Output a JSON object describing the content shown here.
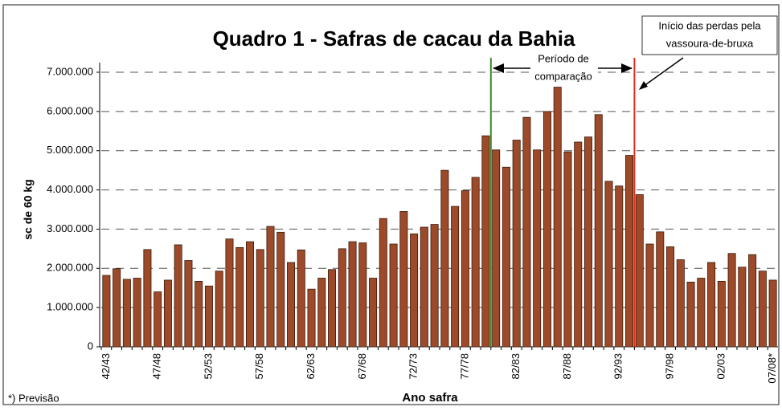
{
  "chart_data": {
    "type": "bar",
    "title": "Quadro 1 - Safras de cacau da Bahia",
    "y_label": "sc de 60 kg",
    "x_label": "Ano safra",
    "note": "*) Previsão",
    "annotations": {
      "period": [
        "Período de",
        "comparação"
      ],
      "losses": [
        "Início das perdas pela",
        "vassoura-de-bruxa"
      ]
    },
    "vlines": [
      {
        "x": 37.5,
        "color": "#3a8a2a"
      },
      {
        "x": 51.5,
        "color": "#e03020"
      }
    ],
    "categories": [
      "42/43",
      null,
      null,
      null,
      null,
      "47/48",
      null,
      null,
      null,
      null,
      "52/53",
      null,
      null,
      null,
      null,
      "57/58",
      null,
      null,
      null,
      null,
      "62/63",
      null,
      null,
      null,
      null,
      "67/68",
      null,
      null,
      null,
      null,
      "72/73",
      null,
      null,
      null,
      null,
      "77/78",
      null,
      null,
      null,
      null,
      "82/83",
      null,
      null,
      null,
      null,
      "87/88",
      null,
      null,
      null,
      null,
      "92/93",
      null,
      null,
      null,
      null,
      "97/98",
      null,
      null,
      null,
      null,
      "02/03",
      null,
      null,
      null,
      null,
      "07/08*"
    ],
    "values": [
      1820000,
      1990000,
      1720000,
      1750000,
      2480000,
      1400000,
      1700000,
      2600000,
      2200000,
      1670000,
      1550000,
      1930000,
      2750000,
      2530000,
      2680000,
      2480000,
      3070000,
      2920000,
      2150000,
      2470000,
      1470000,
      1750000,
      1970000,
      2500000,
      2680000,
      2650000,
      1750000,
      3270000,
      2620000,
      3450000,
      2880000,
      3050000,
      3120000,
      4500000,
      3580000,
      3980000,
      4320000,
      5380000,
      5020000,
      4580000,
      5270000,
      5850000,
      5020000,
      6000000,
      6620000,
      4970000,
      5220000,
      5350000,
      5920000,
      4220000,
      4100000,
      4880000,
      3880000,
      2620000,
      2930000,
      2550000,
      2220000,
      1650000,
      1750000,
      2150000,
      1670000,
      2380000,
      2030000,
      2350000,
      1930000,
      1700000
    ],
    "color": "#9c4a2a",
    "ylim": [
      0,
      7000000
    ],
    "yticks": [
      0,
      {
        "value": 1000000,
        "label": "1.000.000"
      },
      {
        "value": 2000000,
        "label": "2.000.000"
      },
      {
        "value": 3000000,
        "label": "3.000.000"
      },
      {
        "value": 4000000,
        "label": "4.000.000"
      },
      {
        "value": 5000000,
        "label": "5.000.000"
      },
      {
        "value": 6000000,
        "label": "6.000.000"
      },
      {
        "value": 7000000,
        "label": "7.000.000"
      }
    ],
    "grid": true
  }
}
